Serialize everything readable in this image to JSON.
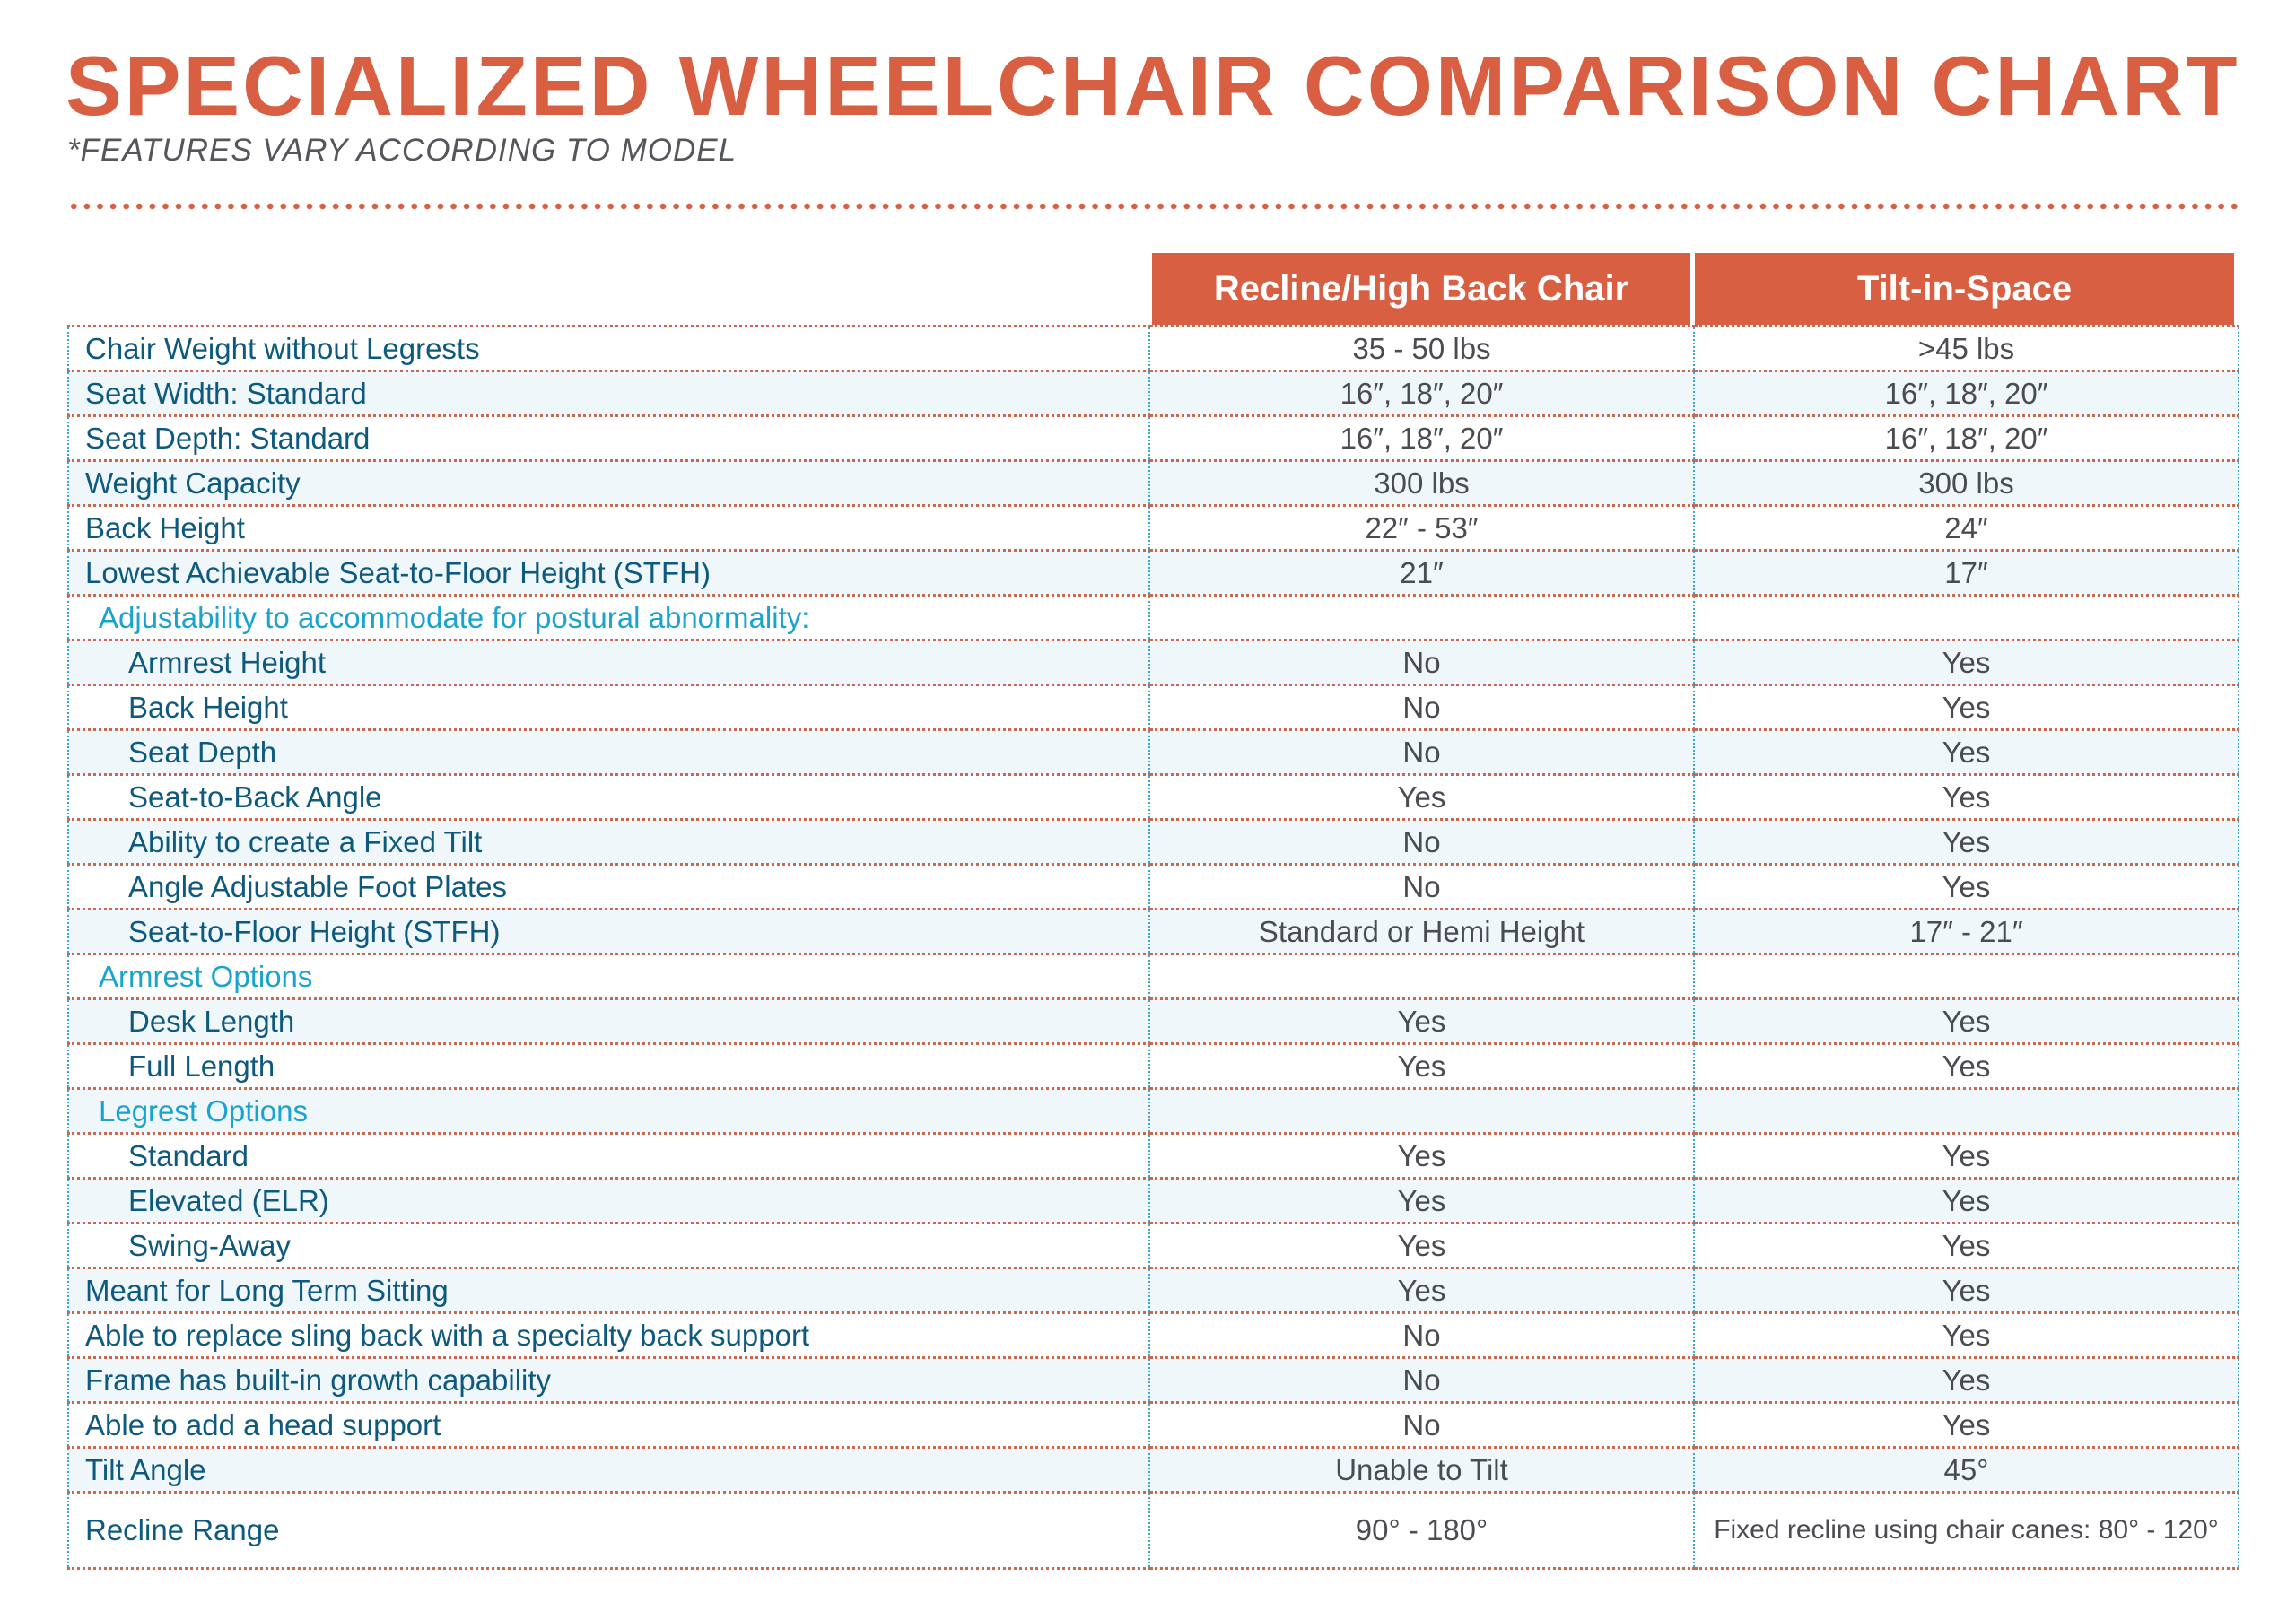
{
  "title": "SPECIALIZED WHEELCHAIR COMPARISON CHART",
  "subtitle": "*FEATURES VARY ACCORDING TO MODEL",
  "colors": {
    "accent": "#d95f43",
    "label": "#0e5a7f",
    "section": "#1aa3cf",
    "value": "#4b4c52",
    "alt_row": "#eff7fb"
  },
  "columns": [
    "Recline/High Back Chair",
    "Tilt-in-Space"
  ],
  "rows": [
    {
      "label": "Chair Weight without Legrests",
      "type": "main",
      "values": [
        "35 - 50 lbs",
        ">45 lbs"
      ]
    },
    {
      "label": "Seat Width: Standard",
      "type": "main",
      "values": [
        "16″, 18″, 20″",
        "16″, 18″, 20″"
      ]
    },
    {
      "label": "Seat Depth: Standard",
      "type": "main",
      "values": [
        "16″, 18″, 20″",
        "16″, 18″, 20″"
      ]
    },
    {
      "label": "Weight Capacity",
      "type": "main",
      "values": [
        "300 lbs",
        "300 lbs"
      ]
    },
    {
      "label": "Back Height",
      "type": "main",
      "values": [
        "22″ - 53″",
        "24″"
      ]
    },
    {
      "label": "Lowest Achievable Seat-to-Floor Height (STFH)",
      "type": "main",
      "values": [
        "21″",
        "17″"
      ]
    },
    {
      "label": "Adjustability to accommodate for postural abnormality:",
      "type": "section",
      "values": [
        "",
        ""
      ]
    },
    {
      "label": "Armrest Height",
      "type": "sub",
      "values": [
        "No",
        "Yes"
      ]
    },
    {
      "label": "Back Height",
      "type": "sub",
      "values": [
        "No",
        "Yes"
      ]
    },
    {
      "label": "Seat Depth",
      "type": "sub",
      "values": [
        "No",
        "Yes"
      ]
    },
    {
      "label": "Seat-to-Back Angle",
      "type": "sub",
      "values": [
        "Yes",
        "Yes"
      ]
    },
    {
      "label": "Ability to create a Fixed Tilt",
      "type": "sub",
      "values": [
        "No",
        "Yes"
      ]
    },
    {
      "label": "Angle Adjustable Foot Plates",
      "type": "sub",
      "values": [
        "No",
        "Yes"
      ]
    },
    {
      "label": "Seat-to-Floor Height (STFH)",
      "type": "sub",
      "values": [
        "Standard or Hemi Height",
        "17″ - 21″"
      ]
    },
    {
      "label": "Armrest Options",
      "type": "section",
      "values": [
        "",
        ""
      ]
    },
    {
      "label": "Desk Length",
      "type": "sub",
      "values": [
        "Yes",
        "Yes"
      ]
    },
    {
      "label": "Full Length",
      "type": "sub",
      "values": [
        "Yes",
        "Yes"
      ]
    },
    {
      "label": "Legrest Options",
      "type": "section",
      "values": [
        "",
        ""
      ]
    },
    {
      "label": "Standard",
      "type": "sub",
      "values": [
        "Yes",
        "Yes"
      ]
    },
    {
      "label": "Elevated (ELR)",
      "type": "sub",
      "values": [
        "Yes",
        "Yes"
      ]
    },
    {
      "label": "Swing-Away",
      "type": "sub",
      "values": [
        "Yes",
        "Yes"
      ]
    },
    {
      "label": "Meant for Long Term Sitting",
      "type": "main",
      "values": [
        "Yes",
        "Yes"
      ]
    },
    {
      "label": "Able to replace sling back with a specialty back support",
      "type": "main",
      "values": [
        "No",
        "Yes"
      ]
    },
    {
      "label": "Frame has built-in growth capability",
      "type": "main",
      "values": [
        "No",
        "Yes"
      ]
    },
    {
      "label": "Able to add a head support",
      "type": "main",
      "values": [
        "No",
        "Yes"
      ]
    },
    {
      "label": "Tilt Angle",
      "type": "main",
      "values": [
        "Unable to Tilt",
        "45°"
      ]
    },
    {
      "label": "Recline Range",
      "type": "main",
      "values": [
        "90° - 180°",
        "Fixed recline using chair canes: 80° - 120°"
      ]
    }
  ]
}
